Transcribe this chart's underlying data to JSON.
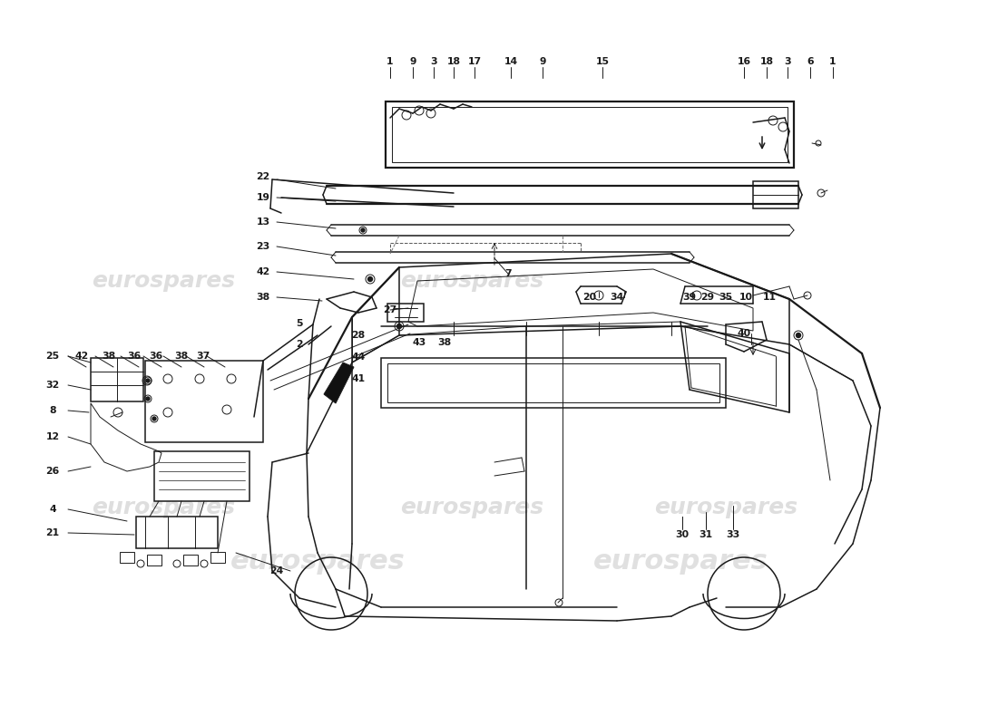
{
  "bg_color": "#ffffff",
  "line_color": "#1a1a1a",
  "wm_color": "#cccccc",
  "figsize": [
    11.0,
    8.0
  ],
  "dpi": 100,
  "top_labels": [
    [
      "1",
      430,
      68
    ],
    [
      "9",
      455,
      68
    ],
    [
      "3",
      478,
      68
    ],
    [
      "18",
      500,
      68
    ],
    [
      "17",
      523,
      68
    ],
    [
      "14",
      563,
      68
    ],
    [
      "9",
      598,
      68
    ],
    [
      "15",
      664,
      68
    ],
    [
      "16",
      820,
      68
    ],
    [
      "18",
      845,
      68
    ],
    [
      "3",
      868,
      68
    ],
    [
      "6",
      893,
      68
    ],
    [
      "1",
      918,
      68
    ]
  ],
  "left_labels": [
    [
      "22",
      290,
      195
    ],
    [
      "19",
      290,
      218
    ],
    [
      "13",
      290,
      245
    ],
    [
      "23",
      290,
      272
    ],
    [
      "42",
      290,
      300
    ],
    [
      "38",
      290,
      328
    ],
    [
      "5",
      330,
      357
    ],
    [
      "2",
      330,
      380
    ],
    [
      "25",
      58,
      393
    ],
    [
      "42",
      90,
      393
    ],
    [
      "38",
      120,
      393
    ],
    [
      "36",
      148,
      393
    ],
    [
      "36",
      172,
      393
    ],
    [
      "38",
      200,
      393
    ],
    [
      "37",
      224,
      393
    ],
    [
      "32",
      58,
      425
    ],
    [
      "8",
      58,
      453
    ],
    [
      "12",
      58,
      482
    ],
    [
      "26",
      58,
      520
    ],
    [
      "4",
      58,
      562
    ],
    [
      "21",
      58,
      588
    ],
    [
      "24",
      305,
      630
    ]
  ],
  "mid_labels": [
    [
      "7",
      560,
      302
    ],
    [
      "27",
      430,
      342
    ],
    [
      "43",
      462,
      378
    ],
    [
      "38",
      490,
      378
    ],
    [
      "28",
      395,
      370
    ],
    [
      "44",
      395,
      394
    ],
    [
      "41",
      395,
      418
    ],
    [
      "20",
      650,
      328
    ],
    [
      "34",
      680,
      328
    ],
    [
      "39",
      760,
      328
    ],
    [
      "29",
      780,
      328
    ],
    [
      "35",
      800,
      328
    ],
    [
      "10",
      822,
      328
    ],
    [
      "11",
      848,
      328
    ],
    [
      "40",
      820,
      368
    ]
  ],
  "right_labels": [
    [
      "30",
      752,
      590
    ],
    [
      "31",
      778,
      590
    ],
    [
      "33",
      808,
      590
    ]
  ]
}
